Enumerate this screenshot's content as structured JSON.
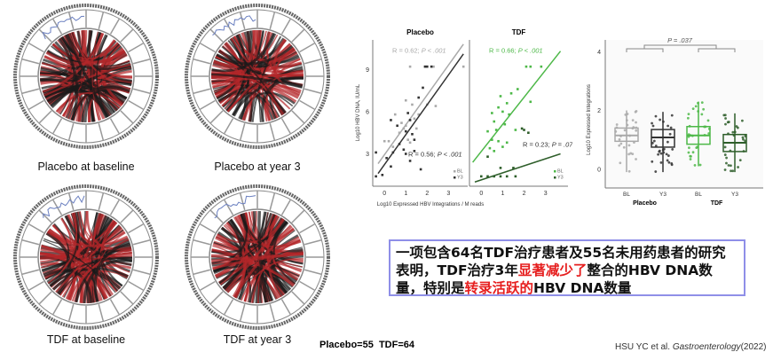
{
  "circos": [
    {
      "caption": "Placebo at baseline"
    },
    {
      "caption": "Placebo at year 3"
    },
    {
      "caption": "TDF at baseline"
    },
    {
      "caption": "TDF at year 3"
    }
  ],
  "colors": {
    "placebo_bl": "#a9a9a9",
    "placebo_y3": "#333333",
    "tdf_bl": "#4db848",
    "tdf_y3": "#2e5e2a",
    "chord_red": "#b3262a",
    "chord_black": "#1a1a1a",
    "note_border": "#8f8fe8",
    "highlight": "#e61e1e"
  },
  "note": {
    "part1": "一项包含64名TDF治疗患者及55名未用药患者的研究表明，TDF治疗3年",
    "highlight1": "显著减少了",
    "part2": "整合的HBV DNA数量，特别是",
    "highlight2": "转录活跃的",
    "part3": "HBV DNA数量"
  },
  "sample_size": "Placebo=55  TDF=64",
  "citation": {
    "authors": "HSU YC et al. ",
    "journal": "Gastroenterology",
    "year": "(2022)"
  },
  "chart_data": [
    {
      "type": "scatter",
      "panels": [
        {
          "title": "Placebo",
          "xlim": [
            -0.55,
            3.9
          ],
          "ylim": [
            0.7,
            11.1
          ],
          "xticks": [
            0,
            1,
            2,
            3
          ],
          "yticks": [
            3,
            6,
            9
          ],
          "series": [
            {
              "name": "BL",
              "color": "#a9a9a9",
              "points": [
                [
                  1.2,
                  9.2
                ],
                [
                  2.3,
                  9.2
                ],
                [
                  3.7,
                  9.2
                ],
                [
                  2.0,
                  6.5
                ],
                [
                  1.0,
                  6.8
                ],
                [
                  1.3,
                  6.5
                ],
                [
                  0.5,
                  5.8
                ],
                [
                  0.8,
                  5.2
                ],
                [
                  1.0,
                  5.0
                ],
                [
                  1.4,
                  5.5
                ],
                [
                  0.2,
                  3.9
                ],
                [
                  0.7,
                  4.5
                ],
                [
                  1.1,
                  4.0
                ],
                [
                  1.5,
                  4.8
                ],
                [
                  0.4,
                  3.5
                ],
                [
                  1.2,
                  3.8
                ],
                [
                  0.9,
                  4.8
                ],
                [
                  1.6,
                  5.8
                ],
                [
                  2.4,
                  6.4
                ],
                [
                  0.0,
                  3.9
                ]
              ],
              "fit": [
                [
                  -0.3,
                  2.3
                ],
                [
                  3.7,
                  10.8
                ]
              ],
              "annotation": {
                "r": "R = 0.62; ",
                "p": "P < .001"
              }
            },
            {
              "name": "Y3",
              "color": "#333333",
              "points": [
                [
                  1.9,
                  9.2
                ],
                [
                  2.0,
                  9.2
                ],
                [
                  2.2,
                  9.2
                ],
                [
                  1.8,
                  7.7
                ],
                [
                  1.6,
                  7.0
                ],
                [
                  1.1,
                  5.9
                ],
                [
                  0.3,
                  5.4
                ],
                [
                  0.6,
                  5.0
                ],
                [
                  1.0,
                  4.6
                ],
                [
                  1.3,
                  4.4
                ],
                [
                  1.4,
                  4.0
                ],
                [
                  0.4,
                  3.1
                ],
                [
                  0.7,
                  3.7
                ],
                [
                  1.0,
                  3.0
                ],
                [
                  1.2,
                  2.5
                ],
                [
                  0.1,
                  2.7
                ],
                [
                  0.3,
                  2.1
                ],
                [
                  -0.4,
                  3.1
                ],
                [
                  -0.4,
                  1.4
                ],
                [
                  -0.1,
                  1.5
                ],
                [
                  1.7,
                  1.9
                ],
                [
                  1.4,
                  3.2
                ],
                [
                  0.9,
                  3.3
                ],
                [
                  1.2,
                  5.4
                ]
              ],
              "fit": [
                [
                  -0.3,
                  1.6
                ],
                [
                  3.7,
                  10.1
                ]
              ],
              "annotation": {
                "r": "R = 0.56; ",
                "p": "P < .001"
              }
            }
          ]
        },
        {
          "title": "TDF",
          "xlim": [
            -0.55,
            4.05
          ],
          "ylim": [
            0.7,
            11.1
          ],
          "xticks": [
            0,
            1,
            2,
            3
          ],
          "yticks": [
            3,
            6,
            9
          ],
          "series": [
            {
              "name": "BL",
              "color": "#4db848",
              "points": [
                [
                  2.1,
                  9.2
                ],
                [
                  2.3,
                  9.2
                ],
                [
                  2.8,
                  9.2
                ],
                [
                  1.7,
                  7.6
                ],
                [
                  0.9,
                  7.1
                ],
                [
                  1.4,
                  7.3
                ],
                [
                  1.2,
                  6.6
                ],
                [
                  0.8,
                  6.3
                ],
                [
                  1.0,
                  6.0
                ],
                [
                  0.5,
                  5.9
                ],
                [
                  1.3,
                  5.8
                ],
                [
                  0.6,
                  5.3
                ],
                [
                  1.1,
                  5.1
                ],
                [
                  0.3,
                  4.6
                ],
                [
                  0.7,
                  4.7
                ],
                [
                  0.5,
                  4.0
                ],
                [
                  0.8,
                  3.9
                ],
                [
                  1.0,
                  3.5
                ],
                [
                  0.4,
                  3.4
                ],
                [
                  1.2,
                  3.8
                ],
                [
                  1.6,
                  4.7
                ],
                [
                  2.3,
                  6.7
                ],
                [
                  0.6,
                  3.2
                ]
              ],
              "fit": [
                [
                  -0.4,
                  2.4
                ],
                [
                  3.7,
                  10.3
                ]
              ],
              "annotation": {
                "r": "R = 0.66; ",
                "p": "P < .001"
              }
            },
            {
              "name": "Y3",
              "color": "#2e5e2a",
              "points": [
                [
                  0.0,
                  1.4
                ],
                [
                  0.3,
                  1.4
                ],
                [
                  0.6,
                  1.4
                ],
                [
                  0.9,
                  1.4
                ],
                [
                  1.2,
                  1.4
                ],
                [
                  1.6,
                  1.4
                ],
                [
                  0.9,
                  2.0
                ],
                [
                  1.5,
                  2.0
                ],
                [
                  0.3,
                  2.8
                ],
                [
                  2.0,
                  4.7
                ],
                [
                  2.2,
                  4.5
                ],
                [
                  1.9,
                  4.8
                ]
              ],
              "fit": [
                [
                  -0.3,
                  1.0
                ],
                [
                  3.7,
                  3.0
                ]
              ],
              "annotation": {
                "r": "R = 0.23; ",
                "p": "P = .072"
              }
            }
          ]
        }
      ],
      "ylabel": "Log10 HBV DNA, IU/mL",
      "xlabel": "Log10 Expressed HBV Integrations / M reads",
      "legend": {
        "placement": "bottom-right",
        "entries": [
          "BL",
          "Y3"
        ]
      }
    },
    {
      "type": "box",
      "ylabel": "Log10 Expressed Integrations",
      "ylim": [
        -0.64,
        4.4
      ],
      "yticks": [
        0,
        2,
        4
      ],
      "groups": [
        "Placebo",
        "TDF"
      ],
      "categories": [
        "BL",
        "Y3",
        "BL",
        "Y3"
      ],
      "boxes": [
        {
          "group": "Placebo",
          "label": "BL",
          "color": "#a9a9a9",
          "min": -0.1,
          "q1": 0.95,
          "median": 1.15,
          "q3": 1.4,
          "max": 2.0
        },
        {
          "group": "Placebo",
          "label": "Y3",
          "color": "#333333",
          "min": -0.1,
          "q1": 0.75,
          "median": 1.08,
          "q3": 1.35,
          "max": 1.95
        },
        {
          "group": "TDF",
          "label": "BL",
          "color": "#4db848",
          "min": 0.1,
          "q1": 0.85,
          "median": 1.15,
          "q3": 1.45,
          "max": 2.3
        },
        {
          "group": "TDF",
          "label": "Y3",
          "color": "#2e5e2a",
          "min": -0.1,
          "q1": 0.6,
          "median": 0.9,
          "q3": 1.18,
          "max": 1.9
        }
      ],
      "comparison": {
        "label": "P = .037"
      }
    }
  ]
}
